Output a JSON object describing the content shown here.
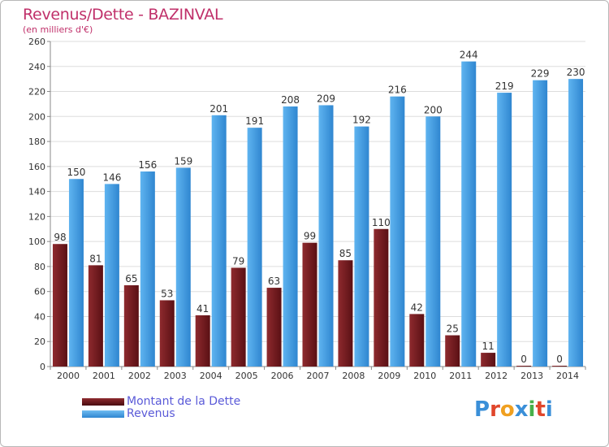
{
  "header": {
    "title": "Revenus/Dette - BAZINVAL",
    "subtitle": "(en milliers d'€)"
  },
  "logo": {
    "text": "Proxiti",
    "colors": [
      "#3a8fd8",
      "#e0462b",
      "#f0a020",
      "#3a8fd8",
      "#47b04a",
      "#e0462b",
      "#3a8fd8"
    ]
  },
  "chart_data": {
    "type": "bar",
    "categories": [
      "2000",
      "2001",
      "2002",
      "2003",
      "2004",
      "2005",
      "2006",
      "2007",
      "2008",
      "2009",
      "2010",
      "2011",
      "2012",
      "2013",
      "2014"
    ],
    "series": [
      {
        "name": "Montant de la Dette",
        "color": "#7a1e22",
        "values": [
          98,
          81,
          65,
          53,
          41,
          79,
          63,
          99,
          85,
          110,
          42,
          25,
          11,
          0,
          0
        ]
      },
      {
        "name": "Revenus",
        "color": "#4aa3e8",
        "values": [
          150,
          146,
          156,
          159,
          201,
          191,
          208,
          209,
          192,
          216,
          200,
          244,
          219,
          229,
          230
        ]
      }
    ],
    "title": "Revenus/Dette - BAZINVAL",
    "ylabel": "(en milliers d'€)",
    "ylim": [
      0,
      260
    ],
    "yticks": [
      0,
      20,
      40,
      60,
      80,
      100,
      120,
      140,
      160,
      180,
      200,
      220,
      240,
      260
    ],
    "grid": true,
    "legend": "bottom-left"
  }
}
